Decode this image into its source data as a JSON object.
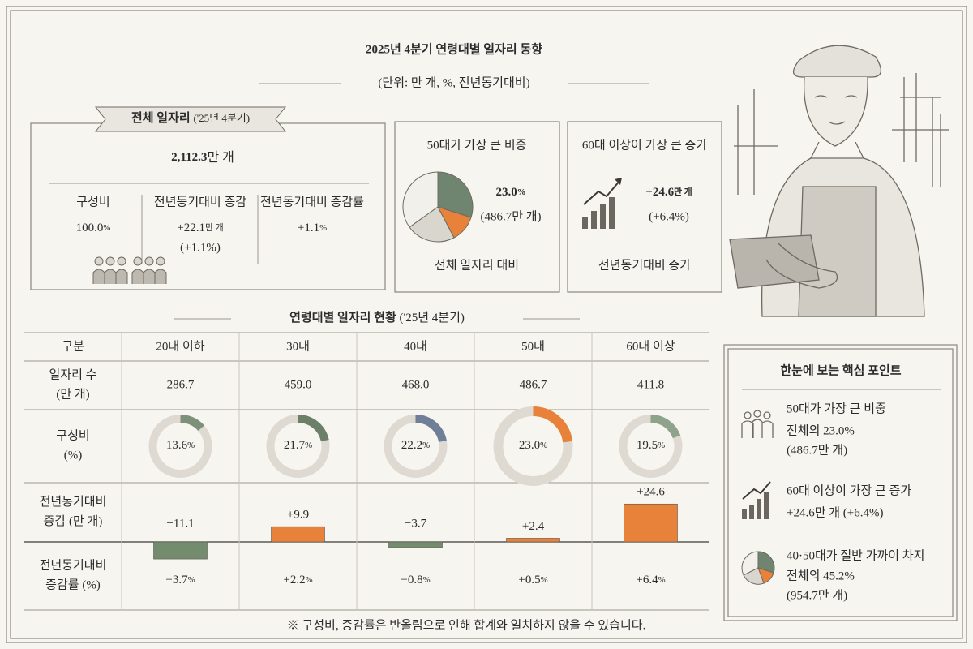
{
  "header": {
    "title": "2025년 4분기 연령대별 일자리 동향",
    "subtitle": "(단위: 만 개, %, 전년동기대비)"
  },
  "summary": {
    "ribbon": "전체 일자리",
    "period": "('25년 4분기)",
    "total": "2,112.3",
    "total_unit": "만 개",
    "stats": [
      {
        "label": "구성비",
        "value": "100.0",
        "unit": "%"
      },
      {
        "label": "전년동기대비 증감",
        "value": "+22.1",
        "unit": "만 개",
        "note": "(+1.1%)"
      },
      {
        "label": "전년동기대비 증감률",
        "value": "+1.1",
        "unit": "%"
      }
    ]
  },
  "cards": [
    {
      "title": "50대가 가장 큰 비중",
      "value": "23.0",
      "unit": "%",
      "note": "(486.7만 개)",
      "footer": "전체 일자리 대비"
    },
    {
      "title": "60대 이상이 가장 큰 증가",
      "value": "+24.6",
      "unit": "만 개",
      "note": "(+6.4%)",
      "footer": "전년동기대비 증가"
    }
  ],
  "table": {
    "title": "연령대별 일자리 현황",
    "period": "('25년 4분기)",
    "corner": "구분",
    "columns": [
      "20대 이하",
      "30대",
      "40대",
      "50대",
      "60대 이상"
    ],
    "row_labels": [
      [
        "일자리 수",
        "(만 개)"
      ],
      [
        "구성비",
        "(%)"
      ],
      [
        "전년동기대비",
        "증감 (만 개)"
      ],
      [
        "전년동기대비",
        "증감률 (%)"
      ]
    ],
    "jobs": [
      "286.7",
      "459.0",
      "468.0",
      "486.7",
      "411.8"
    ],
    "composition": {
      "values": [
        13.6,
        21.7,
        22.2,
        23.0,
        19.5
      ],
      "value_labels": [
        "13.6",
        "21.7",
        "22.2",
        "23.0",
        "19.5"
      ],
      "unit": "%",
      "colors": [
        "#7d917a",
        "#6c8069",
        "#6f7f98",
        "#e8823a",
        "#8fa38c"
      ]
    },
    "change": {
      "values": [
        -11.1,
        9.9,
        -3.7,
        2.4,
        24.6
      ],
      "value_labels": [
        "−11.1",
        "+9.9",
        "−3.7",
        "+2.4",
        "+24.6"
      ],
      "colors": {
        "negative": "#748c6e",
        "positive": "#e8823a"
      }
    },
    "rate": {
      "values": [
        -3.7,
        2.2,
        -0.8,
        0.5,
        6.4
      ],
      "value_labels": [
        "−3.7",
        "+2.2",
        "−0.8",
        "+0.5",
        "+6.4"
      ],
      "unit": "%"
    }
  },
  "footnote": "※ 구성비, 증감률은 반올림으로 인해 합계와 일치하지 않을 수 있습니다.",
  "points": {
    "title": "한눈에 보는 핵심 포인트",
    "items": [
      {
        "title": "50대가 가장 큰 비중",
        "lines": [
          "전체의 23.0%",
          "(486.7만 개)"
        ]
      },
      {
        "title": "60대 이상이 가장 큰 증가",
        "lines": [
          "+24.6만 개 (+6.4%)"
        ]
      },
      {
        "title": "40·50대가 절반 가까이 차지",
        "lines": [
          "전체의 45.2%",
          "(954.7만 개)"
        ]
      }
    ]
  }
}
